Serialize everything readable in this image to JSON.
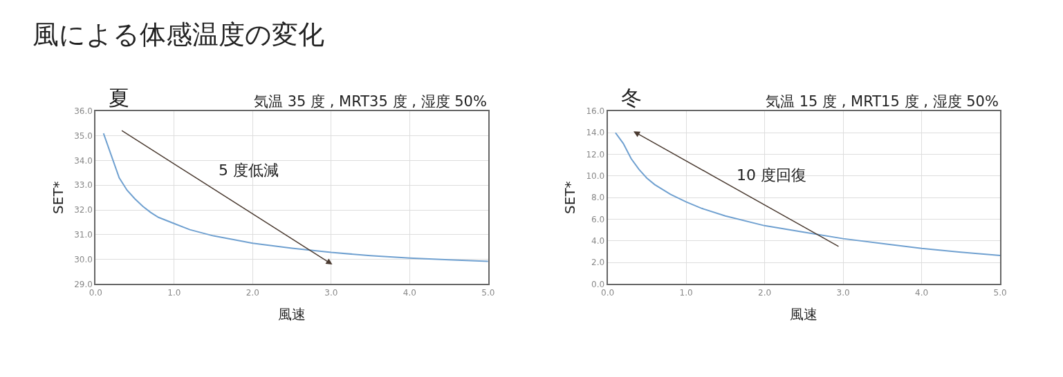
{
  "chart_data": [
    {
      "type": "line",
      "title": "夏",
      "subtitle": "気温 35 度 , MRT35 度 , 湿度 50%",
      "xlabel": "風速",
      "ylabel": "SET*",
      "annotations": [
        "風による体感温度の変化",
        "5 度低減"
      ],
      "x": [
        0.1,
        0.2,
        0.3,
        0.4,
        0.5,
        0.6,
        0.7,
        0.8,
        1.0,
        1.2,
        1.5,
        2.0,
        2.5,
        3.0,
        3.5,
        4.0,
        4.5,
        5.0
      ],
      "series": [
        {
          "color": "#6fa0d0",
          "values": [
            35.1,
            34.2,
            33.3,
            32.8,
            32.45,
            32.15,
            31.9,
            31.7,
            31.45,
            31.2,
            30.95,
            30.65,
            30.45,
            30.28,
            30.15,
            30.05,
            29.98,
            29.92
          ]
        }
      ],
      "xlim": [
        0,
        5
      ],
      "ylim": [
        29,
        36
      ],
      "xticks": [
        {
          "value": 0,
          "label": "0.0"
        },
        {
          "value": 1,
          "label": "1.0"
        },
        {
          "value": 2,
          "label": "2.0"
        },
        {
          "value": 3,
          "label": "3.0"
        },
        {
          "value": 4,
          "label": "4.0"
        },
        {
          "value": 5,
          "label": "5.0"
        }
      ],
      "yticks": [
        {
          "value": 29,
          "label": "29.0"
        },
        {
          "value": 30,
          "label": "30.0"
        },
        {
          "value": 31,
          "label": "31.0"
        },
        {
          "value": 32,
          "label": "32.0"
        },
        {
          "value": 33,
          "label": "33.0"
        },
        {
          "value": 34,
          "label": "34.0"
        },
        {
          "value": 35,
          "label": "35.0"
        },
        {
          "value": 36,
          "label": "36.0"
        }
      ],
      "grid": true,
      "marker": "none",
      "line_style": "solid"
    },
    {
      "type": "line",
      "title": "冬",
      "subtitle": "気温 15 度 , MRT15 度 , 湿度 50%",
      "xlabel": "風速",
      "ylabel": "SET*",
      "annotations": [
        "10 度回復"
      ],
      "x": [
        0.1,
        0.2,
        0.3,
        0.4,
        0.5,
        0.6,
        0.8,
        1.0,
        1.2,
        1.5,
        2.0,
        2.5,
        3.0,
        3.5,
        4.0,
        4.5,
        5.0
      ],
      "series": [
        {
          "color": "#6fa0d0",
          "values": [
            14.0,
            13.0,
            11.6,
            10.6,
            9.8,
            9.2,
            8.3,
            7.6,
            7.0,
            6.3,
            5.4,
            4.8,
            4.2,
            3.75,
            3.3,
            2.95,
            2.65
          ]
        }
      ],
      "xlim": [
        0,
        5
      ],
      "ylim": [
        0,
        16
      ],
      "xticks": [
        {
          "value": 0,
          "label": "0.0"
        },
        {
          "value": 1,
          "label": "1.0"
        },
        {
          "value": 2,
          "label": "2.0"
        },
        {
          "value": 3,
          "label": "3.0"
        },
        {
          "value": 4,
          "label": "4.0"
        },
        {
          "value": 5,
          "label": "5.0"
        }
      ],
      "yticks": [
        {
          "value": 0,
          "label": "0.0"
        },
        {
          "value": 2,
          "label": "2.0"
        },
        {
          "value": 4,
          "label": "4.0"
        },
        {
          "value": 6,
          "label": "6.0"
        },
        {
          "value": 8,
          "label": "8.0"
        },
        {
          "value": 10,
          "label": "10.0"
        },
        {
          "value": 12,
          "label": "12.0"
        },
        {
          "value": 14,
          "label": "14.0"
        },
        {
          "value": 16,
          "label": "16.0"
        }
      ],
      "grid": true,
      "marker": "none",
      "line_style": "solid"
    }
  ]
}
